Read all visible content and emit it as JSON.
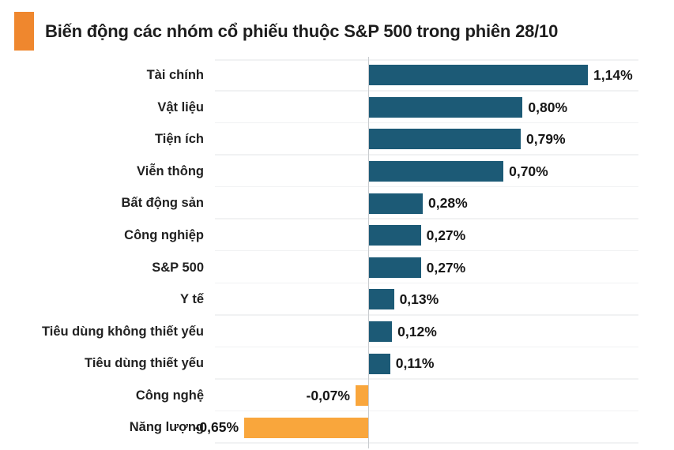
{
  "header": {
    "title": "Biến động các nhóm cổ phiếu thuộc S&P 500 trong phiên 28/10",
    "accent_color": "#ef872e"
  },
  "chart_data": {
    "type": "bar",
    "orientation": "horizontal",
    "title": "Biến động các nhóm cổ phiếu thuộc S&P 500 trong phiên 28/10",
    "categories": [
      "Tài chính",
      "Vật liệu",
      "Tiện ích",
      "Viễn thông",
      "Bất động sản",
      "Công nghiệp",
      "S&P 500",
      "Y tế",
      "Tiêu dùng không thiết yếu",
      "Tiêu dùng thiết yếu",
      "Công nghệ",
      "Năng lượng"
    ],
    "values": [
      1.14,
      0.8,
      0.79,
      0.7,
      0.28,
      0.27,
      0.27,
      0.13,
      0.12,
      0.11,
      -0.07,
      -0.65
    ],
    "value_labels": [
      "1,14%",
      "0,80%",
      "0,79%",
      "0,70%",
      "0,28%",
      "0,27%",
      "0,27%",
      "0,13%",
      "0,12%",
      "0,11%",
      "-0,07%",
      "-0,65%"
    ],
    "unit": "%",
    "xlim": [
      -0.8,
      1.4
    ],
    "grid": true,
    "legend_position": "none",
    "colors": {
      "positive_bar": "#1c5a76",
      "negative_bar": "#f9a63c"
    }
  }
}
